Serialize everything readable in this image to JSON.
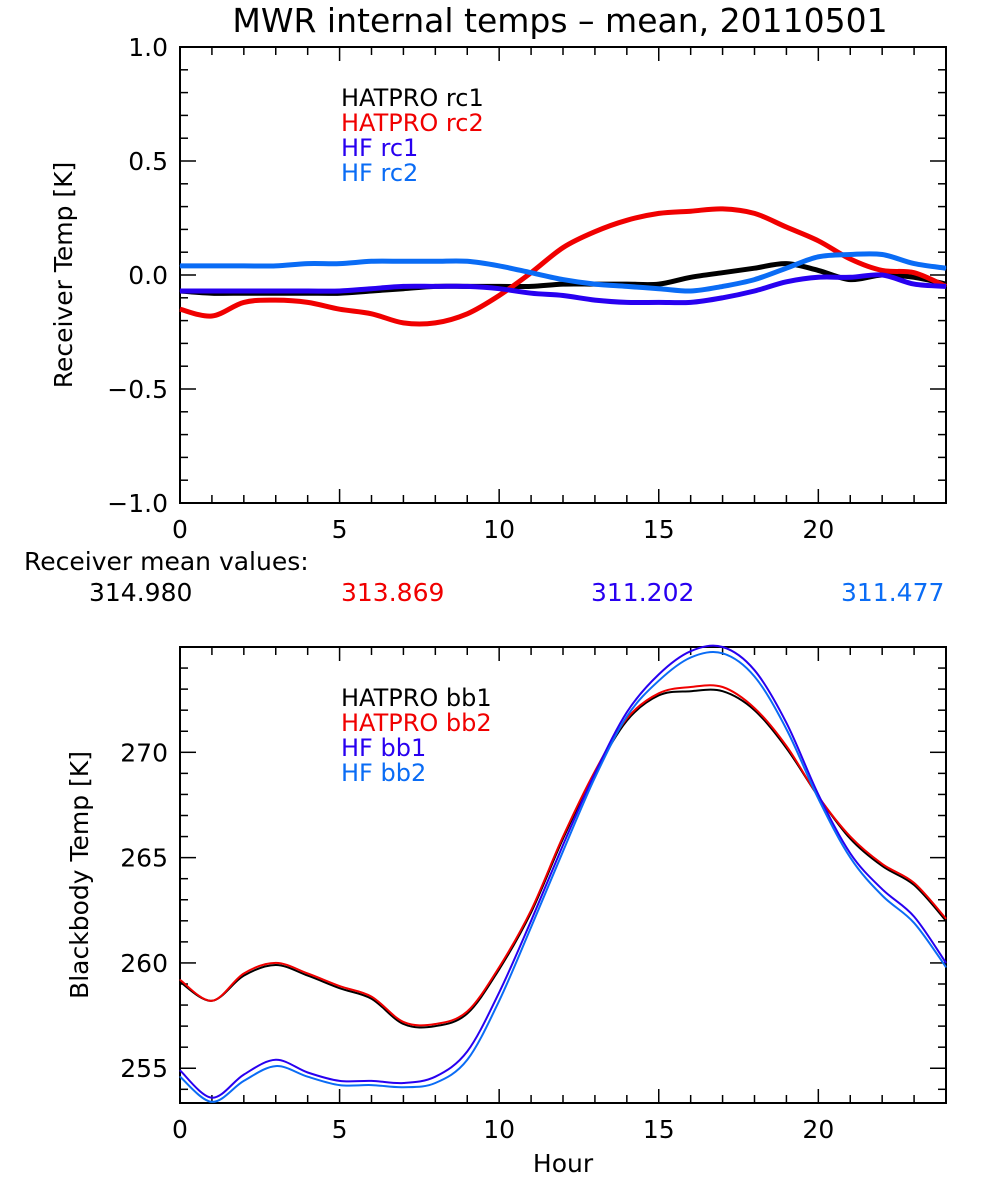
{
  "colors": {
    "black": "#000000",
    "red": "#f00000",
    "purple": "#2800f0",
    "blue": "#0a6cf5"
  },
  "chart_data": [
    {
      "type": "line",
      "title": "MWR internal temps – mean, 20110501",
      "xlabel": "",
      "ylabel": "Receiver Temp [K]",
      "xlim": [
        0,
        24
      ],
      "ylim": [
        -1.0,
        1.0
      ],
      "xticks": [
        0,
        5,
        10,
        15,
        20
      ],
      "xtick_labels": [
        "0",
        "5",
        "10",
        "15",
        "20"
      ],
      "yticks": [
        -1.0,
        -0.5,
        0.0,
        0.5,
        1.0
      ],
      "ytick_labels": [
        "−1.0",
        "−0.5",
        "0.0",
        "0.5",
        "1.0"
      ],
      "grid": false,
      "legend_position": "top-left",
      "x": [
        0,
        1,
        2,
        3,
        4,
        5,
        6,
        7,
        8,
        9,
        10,
        11,
        12,
        13,
        14,
        15,
        16,
        17,
        18,
        19,
        20,
        21,
        22,
        23,
        24
      ],
      "series": [
        {
          "name": "HATPRO rc1",
          "color_key": "black",
          "values": [
            -0.07,
            -0.08,
            -0.08,
            -0.08,
            -0.08,
            -0.08,
            -0.07,
            -0.06,
            -0.05,
            -0.05,
            -0.05,
            -0.05,
            -0.04,
            -0.04,
            -0.04,
            -0.04,
            -0.01,
            0.01,
            0.03,
            0.05,
            0.02,
            -0.02,
            0.0,
            -0.01,
            -0.04
          ]
        },
        {
          "name": "HATPRO rc2",
          "color_key": "red",
          "values": [
            -0.15,
            -0.18,
            -0.12,
            -0.11,
            -0.12,
            -0.15,
            -0.17,
            -0.21,
            -0.21,
            -0.17,
            -0.09,
            0.01,
            0.12,
            0.19,
            0.24,
            0.27,
            0.28,
            0.29,
            0.27,
            0.21,
            0.15,
            0.07,
            0.02,
            0.01,
            -0.05
          ]
        },
        {
          "name": "HF rc1",
          "color_key": "purple",
          "values": [
            -0.07,
            -0.07,
            -0.07,
            -0.07,
            -0.07,
            -0.07,
            -0.06,
            -0.05,
            -0.05,
            -0.05,
            -0.06,
            -0.08,
            -0.09,
            -0.11,
            -0.12,
            -0.12,
            -0.12,
            -0.1,
            -0.07,
            -0.03,
            -0.01,
            -0.01,
            0.0,
            -0.04,
            -0.05
          ]
        },
        {
          "name": "HF rc2",
          "color_key": "blue",
          "values": [
            0.04,
            0.04,
            0.04,
            0.04,
            0.05,
            0.05,
            0.06,
            0.06,
            0.06,
            0.06,
            0.04,
            0.01,
            -0.02,
            -0.04,
            -0.05,
            -0.06,
            -0.07,
            -0.05,
            -0.02,
            0.03,
            0.08,
            0.09,
            0.09,
            0.05,
            0.03
          ]
        }
      ],
      "annotation": {
        "label": "Receiver mean values:",
        "values": [
          {
            "series": "HATPRO rc1",
            "value": "314.980",
            "color_key": "black"
          },
          {
            "series": "HATPRO rc2",
            "value": "313.869",
            "color_key": "red"
          },
          {
            "series": "HF rc1",
            "value": "311.202",
            "color_key": "purple"
          },
          {
            "series": "HF rc2",
            "value": "311.477",
            "color_key": "blue"
          }
        ]
      }
    },
    {
      "type": "line",
      "title": "",
      "xlabel": "Hour",
      "ylabel": "Blackbody Temp [K]",
      "xlim": [
        0,
        24
      ],
      "ylim": [
        253.35,
        275.0
      ],
      "xticks": [
        0,
        5,
        10,
        15,
        20
      ],
      "xtick_labels": [
        "0",
        "5",
        "10",
        "15",
        "20"
      ],
      "yticks": [
        255,
        260,
        265,
        270
      ],
      "ytick_labels": [
        "255",
        "260",
        "265",
        "270"
      ],
      "grid": false,
      "legend_position": "top-left",
      "x": [
        0,
        1,
        2,
        3,
        4,
        5,
        6,
        7,
        8,
        9,
        10,
        11,
        12,
        13,
        14,
        15,
        16,
        17,
        18,
        19,
        20,
        21,
        22,
        23,
        24
      ],
      "series": [
        {
          "name": "HATPRO bb1",
          "color_key": "black",
          "values": [
            259.1,
            258.2,
            259.4,
            259.9,
            259.4,
            258.8,
            258.3,
            257.1,
            257.0,
            257.6,
            259.7,
            262.4,
            265.9,
            269.0,
            271.5,
            272.7,
            272.9,
            272.9,
            272.0,
            270.2,
            267.9,
            265.9,
            264.6,
            263.7,
            262.0
          ]
        },
        {
          "name": "HATPRO bb2",
          "color_key": "red",
          "values": [
            259.2,
            258.2,
            259.5,
            260.0,
            259.5,
            258.9,
            258.4,
            257.2,
            257.1,
            257.7,
            259.8,
            262.5,
            266.0,
            269.1,
            271.6,
            272.8,
            273.1,
            273.1,
            272.1,
            270.3,
            267.9,
            266.0,
            264.7,
            263.8,
            262.1
          ]
        },
        {
          "name": "HF bb1",
          "color_key": "purple",
          "values": [
            254.9,
            253.6,
            254.7,
            255.4,
            254.8,
            254.4,
            254.4,
            254.3,
            254.6,
            255.8,
            258.6,
            262.0,
            265.6,
            269.0,
            271.9,
            273.7,
            274.8,
            275.0,
            273.9,
            271.4,
            268.0,
            265.2,
            263.5,
            262.2,
            260.0
          ]
        },
        {
          "name": "HF bb2",
          "color_key": "blue",
          "values": [
            254.6,
            253.4,
            254.4,
            255.1,
            254.6,
            254.2,
            254.2,
            254.1,
            254.3,
            255.4,
            258.2,
            261.7,
            265.3,
            268.8,
            271.7,
            273.4,
            274.5,
            274.7,
            273.6,
            271.1,
            267.8,
            265.0,
            263.2,
            261.9,
            259.8
          ]
        }
      ]
    }
  ]
}
